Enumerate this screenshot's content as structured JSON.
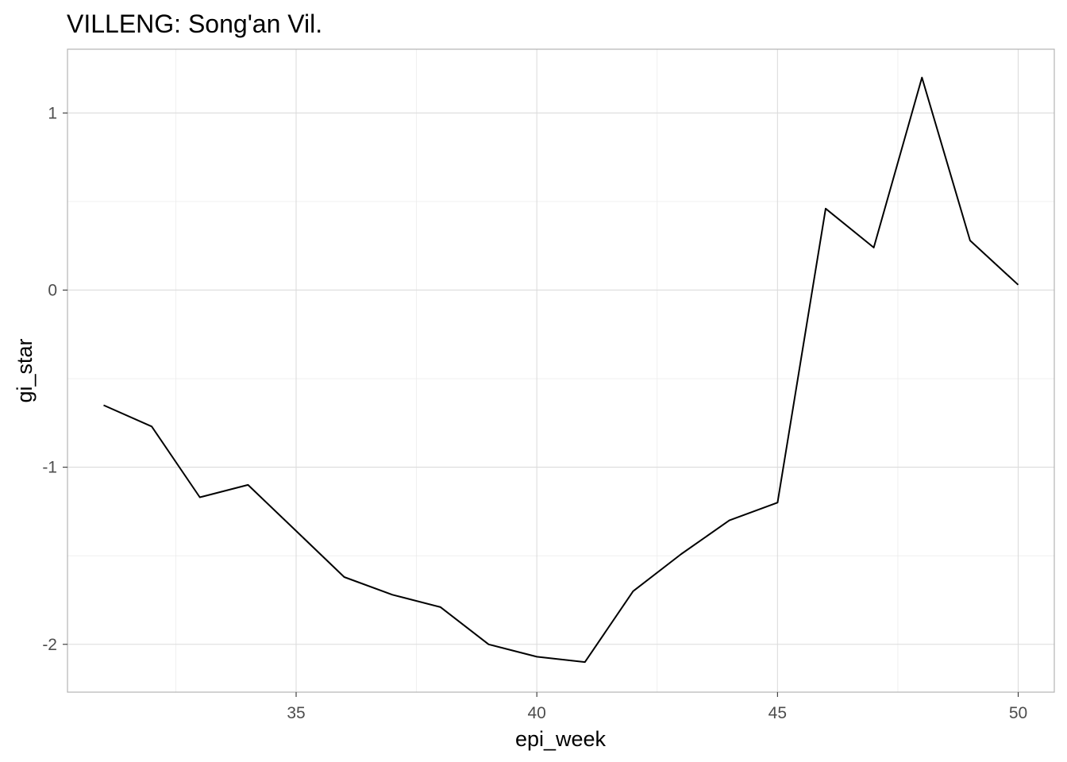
{
  "chart_data": {
    "type": "line",
    "title": "VILLENG: Song'an Vil.",
    "xlabel": "epi_week",
    "ylabel": "gi_star",
    "x": [
      31,
      32,
      33,
      34,
      35,
      36,
      37,
      38,
      39,
      40,
      41,
      42,
      43,
      44,
      45,
      46,
      47,
      48,
      49,
      50
    ],
    "series": [
      {
        "values": [
          -0.65,
          -0.77,
          -1.17,
          -1.1,
          -1.36,
          -1.62,
          -1.72,
          -1.79,
          -2.0,
          -2.07,
          -2.1,
          -1.7,
          -1.49,
          -1.3,
          -1.2,
          0.46,
          0.24,
          1.2,
          0.28,
          0.03
        ]
      }
    ],
    "xlim": [
      30.25,
      50.75
    ],
    "ylim": [
      -2.27,
      1.36
    ],
    "x_ticks": [
      35,
      40,
      45,
      50
    ],
    "x_tick_labels": [
      "35",
      "40",
      "45",
      "50"
    ],
    "y_ticks": [
      1,
      0,
      -1,
      -2
    ],
    "y_tick_labels": [
      "1",
      "0",
      "-1",
      "-2"
    ],
    "grid": true,
    "line_color": "#000000"
  }
}
